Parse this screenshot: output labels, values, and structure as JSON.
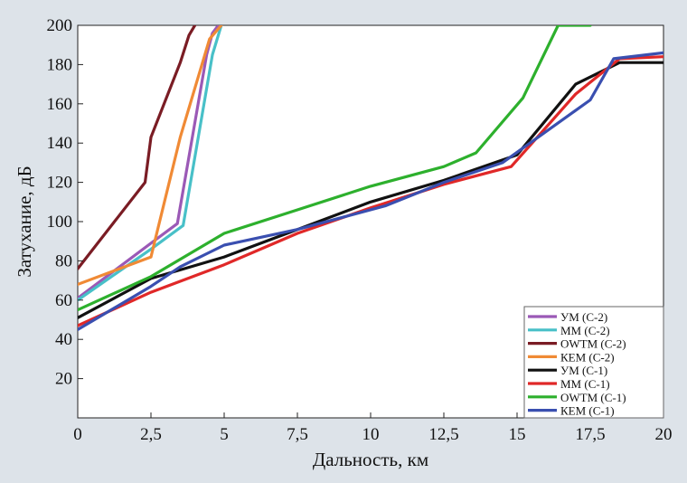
{
  "chart_data": {
    "type": "line",
    "title": "",
    "xlabel": "Дальность, км",
    "ylabel": "Затухание, дБ",
    "xlim": [
      0,
      20
    ],
    "ylim": [
      0,
      200
    ],
    "xticks": [
      {
        "v": 0,
        "label": "0"
      },
      {
        "v": 2.5,
        "label": "2,5"
      },
      {
        "v": 5,
        "label": "5"
      },
      {
        "v": 7.5,
        "label": "7,5"
      },
      {
        "v": 10,
        "label": "10"
      },
      {
        "v": 12.5,
        "label": "12,5"
      },
      {
        "v": 15,
        "label": "15"
      },
      {
        "v": 17.5,
        "label": "17,5"
      },
      {
        "v": 20,
        "label": "20"
      }
    ],
    "yticks": [
      {
        "v": 20,
        "label": "20"
      },
      {
        "v": 40,
        "label": "40"
      },
      {
        "v": 60,
        "label": "60"
      },
      {
        "v": 80,
        "label": "80"
      },
      {
        "v": 100,
        "label": "100"
      },
      {
        "v": 120,
        "label": "120"
      },
      {
        "v": 140,
        "label": "140"
      },
      {
        "v": 160,
        "label": "160"
      },
      {
        "v": 180,
        "label": "180"
      },
      {
        "v": 200,
        "label": "200"
      }
    ],
    "grid": false,
    "legend_position": "bottom-right",
    "series": [
      {
        "name": "УМ (С-2)",
        "color": "#9b59b6",
        "x": [
          0,
          2.5,
          3.4,
          4.4,
          4.6,
          4.8
        ],
        "y": [
          61,
          89,
          99,
          185,
          196,
          200
        ]
      },
      {
        "name": "ММ (С-2)",
        "color": "#48c0c8",
        "x": [
          0,
          2.5,
          3.6,
          4.6,
          4.9
        ],
        "y": [
          60,
          86,
          98,
          185,
          200
        ]
      },
      {
        "name": "OWTM (С-2)",
        "color": "#7a1c24",
        "x": [
          0,
          2.3,
          2.5,
          3.5,
          3.8,
          4.0
        ],
        "y": [
          76,
          120,
          143,
          181,
          195,
          200
        ]
      },
      {
        "name": "КЕМ (С-2)",
        "color": "#f08a35",
        "x": [
          0,
          2.5,
          3.5,
          4.5,
          4.9
        ],
        "y": [
          68,
          82,
          143,
          193,
          200
        ]
      },
      {
        "name": "УМ (С-1)",
        "color": "#111111",
        "x": [
          0,
          2.5,
          5,
          7.5,
          10,
          12.5,
          15,
          17,
          18.5,
          20
        ],
        "y": [
          51,
          71,
          82,
          96,
          110,
          121,
          134,
          170,
          181,
          181
        ]
      },
      {
        "name": "ММ (С-1)",
        "color": "#e02828",
        "x": [
          0,
          2.5,
          5,
          7.5,
          10,
          12.5,
          14.8,
          17,
          18.5,
          20
        ],
        "y": [
          47,
          64,
          78,
          94,
          107,
          119,
          128,
          165,
          183,
          184
        ]
      },
      {
        "name": "OWTM (С-1)",
        "color": "#2db02d",
        "x": [
          0,
          2.5,
          5,
          7.5,
          10,
          12.5,
          13.6,
          15.2,
          16.4,
          17.5
        ],
        "y": [
          55,
          72,
          94,
          106,
          118,
          128,
          135,
          163,
          200,
          200
        ]
      },
      {
        "name": "КЕМ (С-1)",
        "color": "#3a4fb0",
        "x": [
          0,
          2.5,
          3.5,
          5,
          7.5,
          10.5,
          12.5,
          14.5,
          17.5,
          18.3,
          20
        ],
        "y": [
          45,
          67,
          77,
          88,
          96,
          108,
          120,
          130,
          162,
          183,
          186
        ]
      }
    ]
  }
}
